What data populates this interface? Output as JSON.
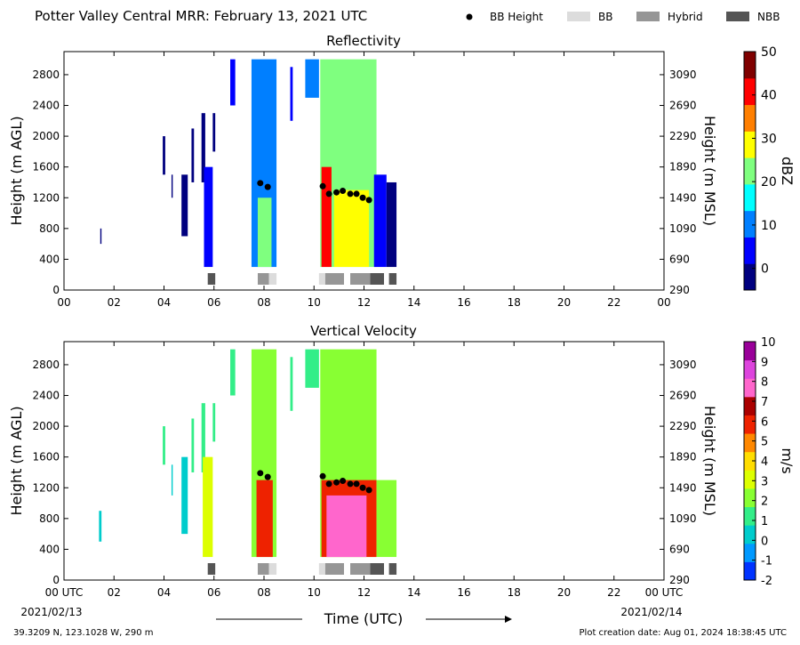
{
  "header": {
    "title": "Potter Valley Central MRR:  February 13, 2021 UTC",
    "legend": [
      {
        "label": "BB Height",
        "kind": "dot",
        "color": "#000000"
      },
      {
        "label": "BB",
        "kind": "box",
        "color": "#dcdcdc"
      },
      {
        "label": "Hybrid",
        "kind": "box",
        "color": "#969696"
      },
      {
        "label": "NBB",
        "kind": "box",
        "color": "#555555"
      }
    ]
  },
  "footer": {
    "location": "39.3209 N, 123.1028 W, 290 m",
    "created": "Plot creation date: Aug 01, 2024 18:38:45 UTC",
    "xlabel": "Time (UTC)",
    "start_date": "2021/02/13",
    "end_date": "2021/02/14"
  },
  "colors": {
    "bb": "#dcdcdc",
    "hybrid": "#969696",
    "nbb": "#555555",
    "bb_marker": "#000000"
  },
  "chart_data": [
    {
      "type": "heatmap",
      "title": "Reflectivity",
      "xlabel": "Time (UTC)",
      "ylabel": "Height (m AGL)",
      "ylabel_right": "Height (m MSL)",
      "xlim": [
        0,
        24
      ],
      "ylim": [
        0,
        3100
      ],
      "x_ticks": [
        "00",
        "02",
        "04",
        "06",
        "08",
        "10",
        "12",
        "14",
        "16",
        "18",
        "20",
        "22",
        "00"
      ],
      "y_ticks": [
        0,
        400,
        800,
        1200,
        1600,
        2000,
        2400,
        2800
      ],
      "y_ticks_right": [
        290,
        690,
        1090,
        1490,
        1890,
        2290,
        2690,
        3090
      ],
      "colorbar": {
        "label": "dBZ",
        "min": -5,
        "max": 50,
        "ticks": [
          0,
          10,
          20,
          30,
          40,
          50
        ],
        "colors": [
          "#00007f",
          "#0000ff",
          "#007fff",
          "#00ffff",
          "#7fff7f",
          "#ffff00",
          "#ff7f00",
          "#ff0000",
          "#7f0000"
        ]
      },
      "bb_height": [
        {
          "time": 7.85,
          "height": 1390
        },
        {
          "time": 8.15,
          "height": 1340
        },
        {
          "time": 10.35,
          "height": 1350
        },
        {
          "time": 10.6,
          "height": 1250
        },
        {
          "time": 10.9,
          "height": 1270
        },
        {
          "time": 11.15,
          "height": 1290
        },
        {
          "time": 11.45,
          "height": 1250
        },
        {
          "time": 11.7,
          "height": 1250
        },
        {
          "time": 11.95,
          "height": 1200
        },
        {
          "time": 12.2,
          "height": 1170
        }
      ],
      "bb_classification": [
        {
          "start": 5.75,
          "end": 6.05,
          "class": "NBB"
        },
        {
          "start": 7.75,
          "end": 8.2,
          "class": "Hybrid"
        },
        {
          "start": 8.2,
          "end": 8.5,
          "class": "BB"
        },
        {
          "start": 10.2,
          "end": 10.45,
          "class": "BB"
        },
        {
          "start": 10.45,
          "end": 11.2,
          "class": "Hybrid"
        },
        {
          "start": 11.45,
          "end": 12.25,
          "class": "Hybrid"
        },
        {
          "start": 12.25,
          "end": 12.8,
          "class": "NBB"
        },
        {
          "start": 13.0,
          "end": 13.3,
          "class": "NBB"
        }
      ],
      "echo_regions": [
        {
          "start": 1.45,
          "end": 1.5,
          "bottom": 600,
          "top": 800,
          "value": 0
        },
        {
          "start": 3.95,
          "end": 4.05,
          "bottom": 1500,
          "top": 2000,
          "value": 0
        },
        {
          "start": 4.3,
          "end": 4.35,
          "bottom": 1200,
          "top": 1500,
          "value": 0
        },
        {
          "start": 4.7,
          "end": 4.95,
          "bottom": 700,
          "top": 1500,
          "value": 0
        },
        {
          "start": 5.1,
          "end": 5.2,
          "bottom": 1400,
          "top": 2100,
          "value": 0
        },
        {
          "start": 5.5,
          "end": 5.65,
          "bottom": 1400,
          "top": 2300,
          "value": 0
        },
        {
          "start": 5.6,
          "end": 5.95,
          "bottom": 300,
          "top": 1600,
          "value": 2
        },
        {
          "start": 5.95,
          "end": 6.05,
          "bottom": 1800,
          "top": 2300,
          "value": 0
        },
        {
          "start": 6.65,
          "end": 6.85,
          "bottom": 2400,
          "top": 3000,
          "value": 2
        },
        {
          "start": 7.5,
          "end": 8.5,
          "bottom": 300,
          "top": 3000,
          "value": 12
        },
        {
          "start": 7.75,
          "end": 8.3,
          "bottom": 300,
          "top": 1200,
          "value": 22
        },
        {
          "start": 9.05,
          "end": 9.15,
          "bottom": 2200,
          "top": 2900,
          "value": 2
        },
        {
          "start": 9.65,
          "end": 10.2,
          "bottom": 2500,
          "top": 3000,
          "value": 8
        },
        {
          "start": 10.25,
          "end": 12.5,
          "bottom": 300,
          "top": 3000,
          "value": 22
        },
        {
          "start": 10.3,
          "end": 10.7,
          "bottom": 300,
          "top": 1600,
          "value": 42
        },
        {
          "start": 10.8,
          "end": 12.2,
          "bottom": 300,
          "top": 1300,
          "value": 30
        },
        {
          "start": 12.4,
          "end": 12.9,
          "bottom": 300,
          "top": 1500,
          "value": 5
        },
        {
          "start": 12.9,
          "end": 13.3,
          "bottom": 300,
          "top": 1400,
          "value": 0
        }
      ]
    },
    {
      "type": "heatmap",
      "title": "Vertical Velocity",
      "xlabel": "Time (UTC)",
      "ylabel": "Height (m AGL)",
      "ylabel_right": "Height (m MSL)",
      "xlim": [
        0,
        24
      ],
      "ylim": [
        0,
        3100
      ],
      "x_ticks": [
        "00 UTC",
        "02",
        "04",
        "06",
        "08",
        "10",
        "12",
        "14",
        "16",
        "18",
        "20",
        "22",
        "00 UTC"
      ],
      "y_ticks": [
        0,
        400,
        800,
        1200,
        1600,
        2000,
        2400,
        2800
      ],
      "y_ticks_right": [
        290,
        690,
        1090,
        1490,
        1890,
        2290,
        2690,
        3090
      ],
      "colorbar": {
        "label": "m/s",
        "min": -2,
        "max": 10,
        "ticks": [
          -2,
          -1,
          0,
          1,
          2,
          3,
          4,
          5,
          6,
          7,
          8,
          9,
          10
        ],
        "colors": [
          "#0033ff",
          "#0099ff",
          "#00cccc",
          "#33ee88",
          "#88ff33",
          "#ddff00",
          "#ffdd00",
          "#ff8800",
          "#ee2200",
          "#aa0000",
          "#ff66cc",
          "#dd44dd",
          "#990099"
        ]
      },
      "bb_height": [
        {
          "time": 7.85,
          "height": 1390
        },
        {
          "time": 8.15,
          "height": 1340
        },
        {
          "time": 10.35,
          "height": 1350
        },
        {
          "time": 10.6,
          "height": 1250
        },
        {
          "time": 10.9,
          "height": 1270
        },
        {
          "time": 11.15,
          "height": 1290
        },
        {
          "time": 11.45,
          "height": 1250
        },
        {
          "time": 11.7,
          "height": 1250
        },
        {
          "time": 11.95,
          "height": 1200
        },
        {
          "time": 12.2,
          "height": 1170
        }
      ],
      "bb_classification": [
        {
          "start": 5.75,
          "end": 6.05,
          "class": "NBB"
        },
        {
          "start": 7.75,
          "end": 8.2,
          "class": "Hybrid"
        },
        {
          "start": 8.2,
          "end": 8.5,
          "class": "BB"
        },
        {
          "start": 10.2,
          "end": 10.45,
          "class": "BB"
        },
        {
          "start": 10.45,
          "end": 11.2,
          "class": "Hybrid"
        },
        {
          "start": 11.45,
          "end": 12.25,
          "class": "Hybrid"
        },
        {
          "start": 12.25,
          "end": 12.8,
          "class": "NBB"
        },
        {
          "start": 13.0,
          "end": 13.3,
          "class": "NBB"
        }
      ],
      "echo_regions": [
        {
          "start": 1.4,
          "end": 1.5,
          "bottom": 500,
          "top": 900,
          "value": 0.5
        },
        {
          "start": 3.95,
          "end": 4.05,
          "bottom": 1500,
          "top": 2000,
          "value": 1.5
        },
        {
          "start": 4.3,
          "end": 4.35,
          "bottom": 1100,
          "top": 1500,
          "value": 0.5
        },
        {
          "start": 4.7,
          "end": 4.95,
          "bottom": 600,
          "top": 1600,
          "value": 0.5
        },
        {
          "start": 5.1,
          "end": 5.2,
          "bottom": 1400,
          "top": 2100,
          "value": 1.2
        },
        {
          "start": 5.5,
          "end": 5.65,
          "bottom": 1400,
          "top": 2300,
          "value": 1.5
        },
        {
          "start": 5.55,
          "end": 5.95,
          "bottom": 300,
          "top": 1600,
          "value": 3
        },
        {
          "start": 5.95,
          "end": 6.05,
          "bottom": 1800,
          "top": 2300,
          "value": 1.5
        },
        {
          "start": 6.65,
          "end": 6.85,
          "bottom": 2400,
          "top": 3000,
          "value": 1.5
        },
        {
          "start": 7.5,
          "end": 8.5,
          "bottom": 300,
          "top": 3000,
          "value": 1.8
        },
        {
          "start": 7.7,
          "end": 8.35,
          "bottom": 300,
          "top": 1300,
          "value": 5.5
        },
        {
          "start": 9.05,
          "end": 9.15,
          "bottom": 2200,
          "top": 2900,
          "value": 1.5
        },
        {
          "start": 9.65,
          "end": 10.2,
          "bottom": 2500,
          "top": 3000,
          "value": 1.5
        },
        {
          "start": 10.25,
          "end": 12.5,
          "bottom": 300,
          "top": 3000,
          "value": 2.5
        },
        {
          "start": 10.3,
          "end": 12.5,
          "bottom": 300,
          "top": 1300,
          "value": 6
        },
        {
          "start": 10.5,
          "end": 12.1,
          "bottom": 300,
          "top": 1100,
          "value": 8
        },
        {
          "start": 12.5,
          "end": 13.3,
          "bottom": 300,
          "top": 1300,
          "value": 2.5
        }
      ]
    }
  ]
}
